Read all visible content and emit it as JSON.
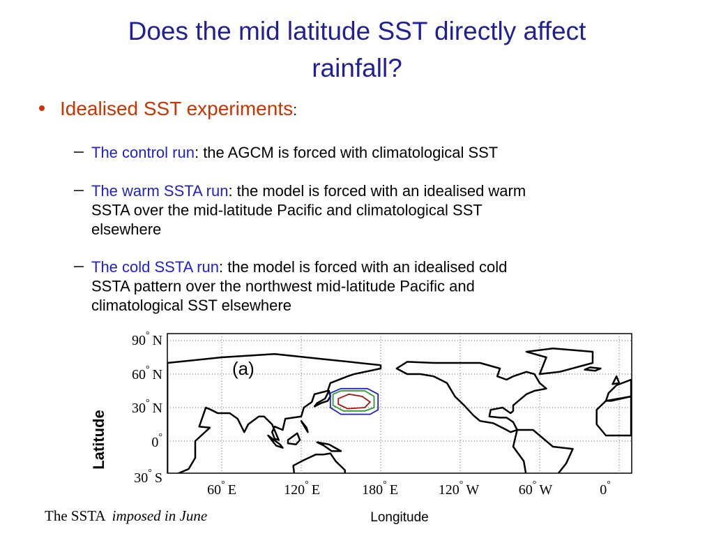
{
  "title_lines": [
    "Does the mid latitude SST directly affect",
    "rainfall?"
  ],
  "bullet": {
    "label": "Idealised SST experiments",
    "punct": ":"
  },
  "items": [
    {
      "label": "The control run",
      "lines": [
        ": the AGCM is forced with climatological SST"
      ]
    },
    {
      "label": "The warm SSTA run",
      "lines": [
        ": the model is forced with an idealised warm",
        "SSTA over the mid-latitude Pacific and climatological SST",
        "elsewhere"
      ]
    },
    {
      "label": "The cold SSTA run",
      "lines": [
        ": the model is forced with an idealised cold",
        "SSTA pattern  over the northwest mid-latitude Pacific and",
        "climatological SST elsewhere"
      ]
    }
  ],
  "figure": {
    "panel_label": "(a)",
    "degree": "°",
    "y_label": "Latitude",
    "x_label": "Longitude",
    "yticks": [
      {
        "num": "90",
        "hem": "N"
      },
      {
        "num": "60",
        "hem": "N"
      },
      {
        "num": "30",
        "hem": "N"
      },
      {
        "num": "0",
        "hem": ""
      },
      {
        "num": "30",
        "hem": "S"
      }
    ],
    "xticks": [
      {
        "num": "60",
        "hem": "E"
      },
      {
        "num": "120",
        "hem": "E"
      },
      {
        "num": "180",
        "hem": "E"
      },
      {
        "num": "120",
        "hem": "W"
      },
      {
        "num": "60",
        "hem": "W"
      },
      {
        "num": "0",
        "hem": ""
      }
    ]
  },
  "caption": {
    "normal": "The SSTA ",
    "italic": "imposed in June"
  }
}
